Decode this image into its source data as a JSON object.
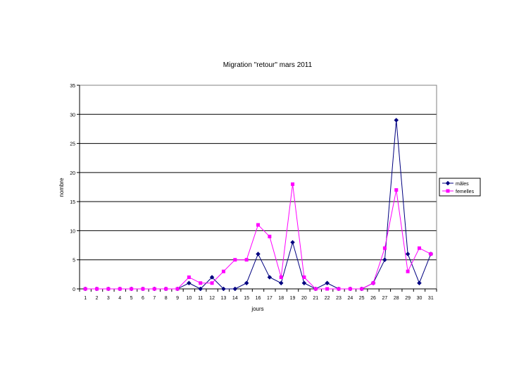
{
  "chart_data": {
    "type": "line",
    "title": "Migration \"retour\" mars 2011",
    "xlabel": "jours",
    "ylabel": "nombre",
    "categories": [
      "1",
      "2",
      "3",
      "4",
      "5",
      "6",
      "7",
      "8",
      "9",
      "10",
      "11",
      "12",
      "13",
      "14",
      "15",
      "16",
      "17",
      "18",
      "19",
      "20",
      "21",
      "22",
      "23",
      "24",
      "25",
      "26",
      "27",
      "28",
      "29",
      "30",
      "31"
    ],
    "ylim": [
      0,
      35
    ],
    "yticks": [
      0,
      5,
      10,
      15,
      20,
      25,
      30,
      35
    ],
    "grid": true,
    "legend_position": "right",
    "series": [
      {
        "name": "mâles",
        "color": "#000080",
        "marker": "diamond",
        "values": [
          0,
          0,
          0,
          0,
          0,
          0,
          0,
          0,
          0,
          1,
          0,
          2,
          0,
          0,
          1,
          6,
          2,
          1,
          8,
          1,
          0,
          1,
          0,
          0,
          0,
          1,
          5,
          29,
          6,
          1,
          6
        ]
      },
      {
        "name": "femelles",
        "color": "#ff00ff",
        "marker": "square",
        "values": [
          0,
          0,
          0,
          0,
          0,
          0,
          0,
          0,
          0,
          2,
          1,
          1,
          3,
          5,
          5,
          11,
          9,
          2,
          18,
          2,
          0,
          0,
          0,
          0,
          0,
          1,
          7,
          17,
          3,
          7,
          6
        ]
      }
    ]
  }
}
